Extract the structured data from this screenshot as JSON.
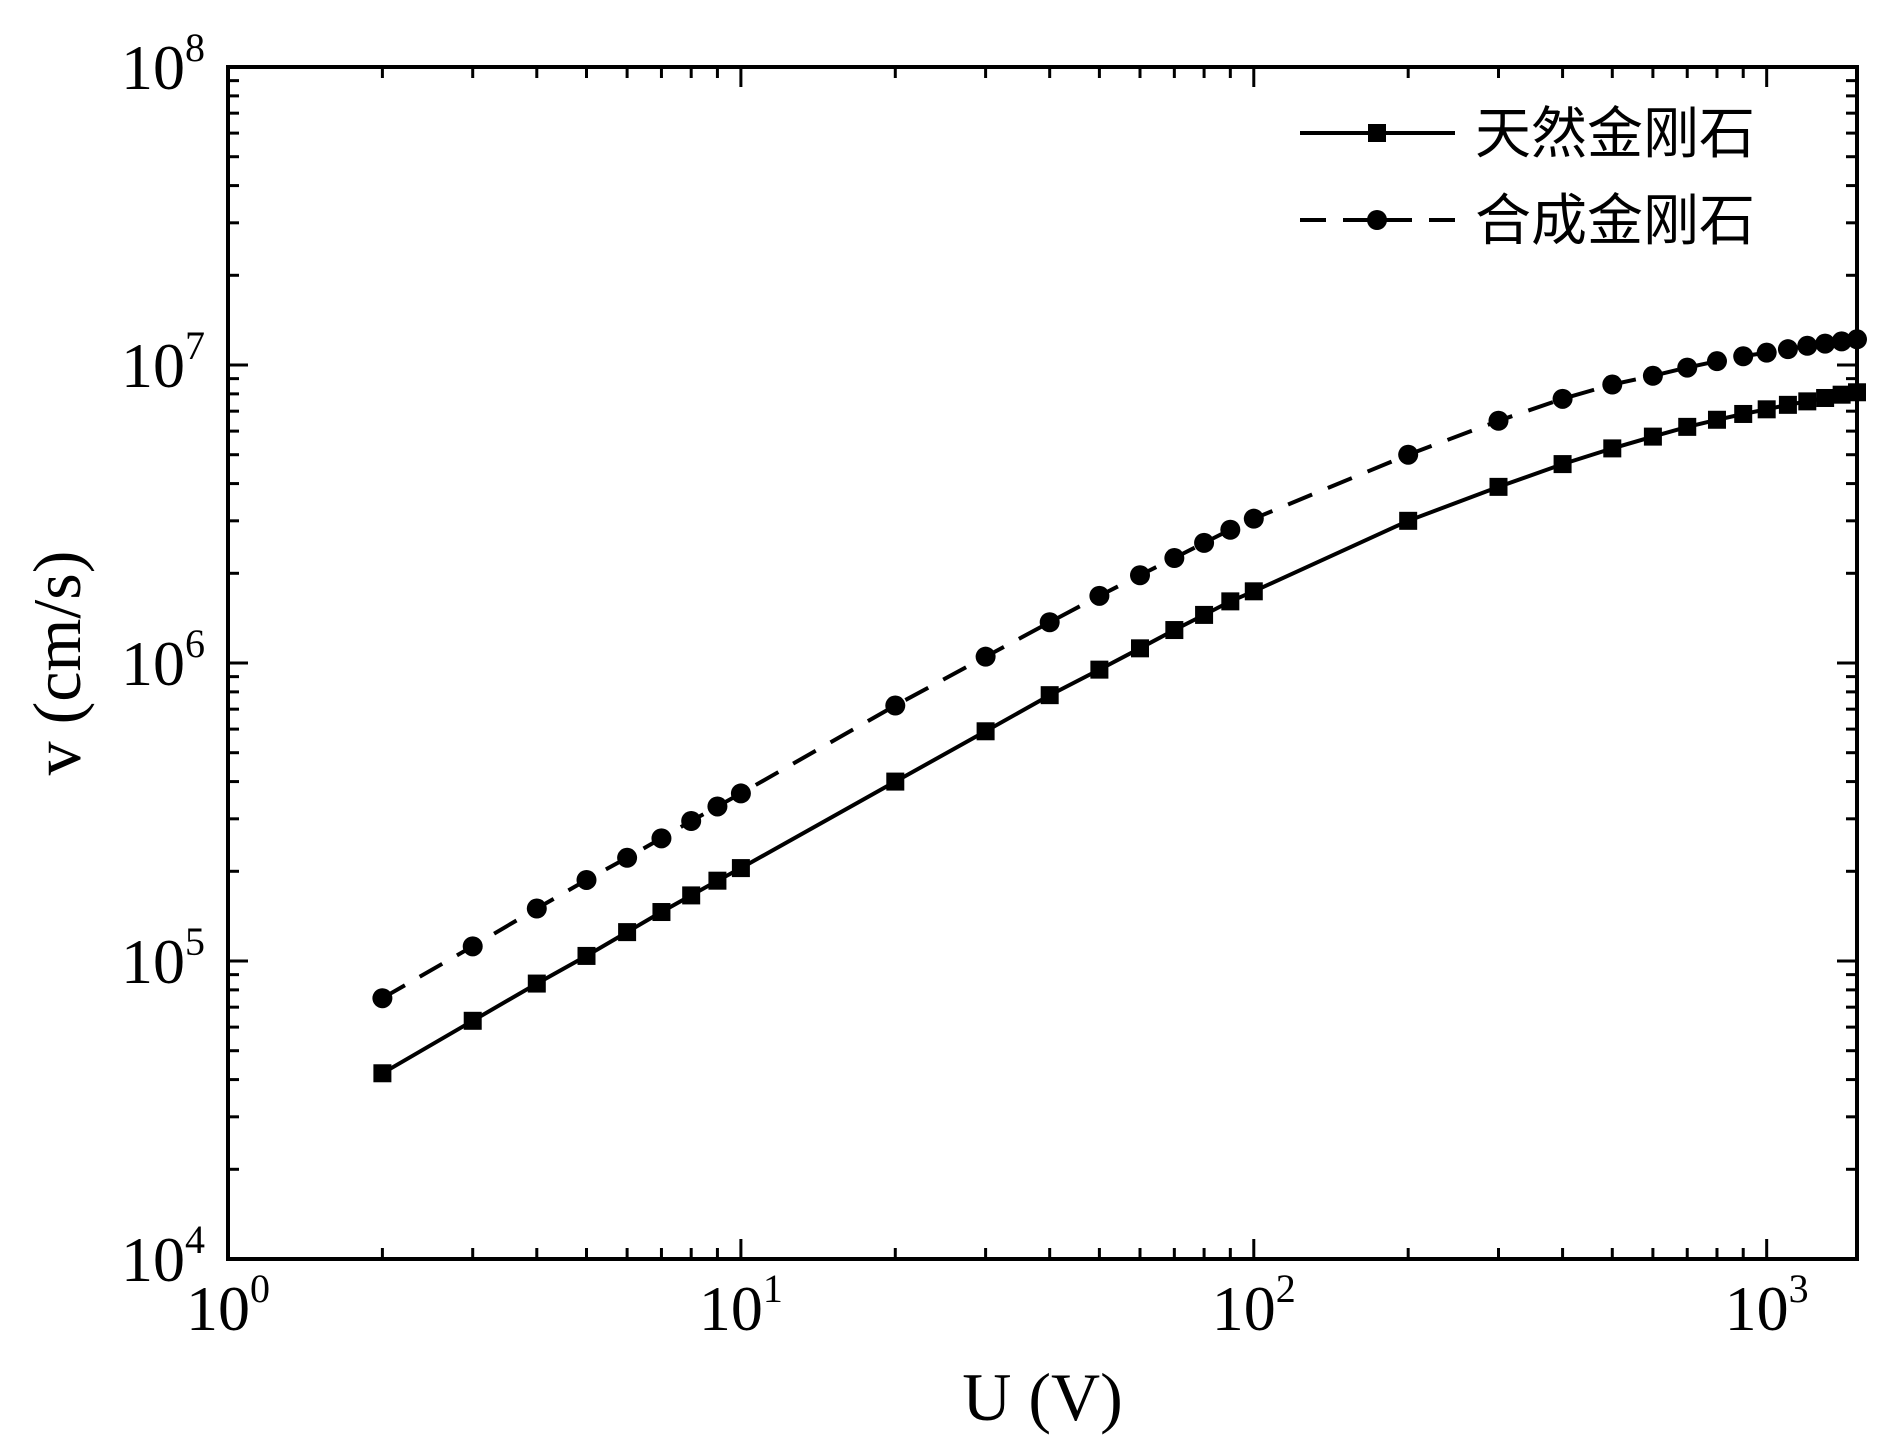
{
  "chart_data": {
    "type": "line",
    "title": "",
    "xlabel": "U (V)",
    "ylabel": "v (cm/s)",
    "xscale": "log",
    "yscale": "log",
    "xlim": [
      1,
      1500
    ],
    "ylim": [
      10000,
      100000000
    ],
    "x_ticks": [
      {
        "value": 1,
        "base": "10",
        "exp": "0"
      },
      {
        "value": 10,
        "base": "10",
        "exp": "1"
      },
      {
        "value": 100,
        "base": "10",
        "exp": "2"
      },
      {
        "value": 1000,
        "base": "10",
        "exp": "3"
      }
    ],
    "y_ticks": [
      {
        "value": 10000,
        "base": "10",
        "exp": "4"
      },
      {
        "value": 100000,
        "base": "10",
        "exp": "5"
      },
      {
        "value": 1000000,
        "base": "10",
        "exp": "6"
      },
      {
        "value": 10000000,
        "base": "10",
        "exp": "7"
      },
      {
        "value": 100000000,
        "base": "10",
        "exp": "8"
      }
    ],
    "grid": false,
    "legend_position": "top-right",
    "series": [
      {
        "name": "天然金刚石",
        "line": "solid",
        "marker": "square",
        "color": "#000000",
        "x": [
          2,
          3,
          4,
          5,
          6,
          7,
          8,
          9,
          10,
          20,
          30,
          40,
          50,
          60,
          70,
          80,
          90,
          100,
          200,
          300,
          400,
          500,
          600,
          700,
          800,
          900,
          1000,
          1100,
          1200,
          1300,
          1400,
          1500
        ],
        "y": [
          42000,
          63000,
          84000,
          104000,
          125000,
          146000,
          166000,
          186000,
          205000,
          400000,
          590000,
          780000,
          950000,
          1120000,
          1290000,
          1450000,
          1610000,
          1740000,
          3000000,
          3900000,
          4650000,
          5250000,
          5750000,
          6200000,
          6550000,
          6850000,
          7100000,
          7350000,
          7550000,
          7750000,
          7950000,
          8100000
        ]
      },
      {
        "name": "合成金刚石",
        "line": "dashed",
        "marker": "circle",
        "color": "#000000",
        "x": [
          2,
          3,
          4,
          5,
          6,
          7,
          8,
          9,
          10,
          20,
          30,
          40,
          50,
          60,
          70,
          80,
          90,
          100,
          200,
          300,
          400,
          500,
          600,
          700,
          800,
          900,
          1000,
          1100,
          1200,
          1300,
          1400,
          1500
        ],
        "y": [
          75000,
          112000,
          150000,
          187000,
          222000,
          258000,
          295000,
          330000,
          365000,
          720000,
          1050000,
          1370000,
          1680000,
          1970000,
          2250000,
          2530000,
          2800000,
          3050000,
          5000000,
          6500000,
          7700000,
          8600000,
          9200000,
          9800000,
          10300000,
          10700000,
          11000000,
          11300000,
          11600000,
          11800000,
          12000000,
          12200000
        ]
      }
    ]
  }
}
